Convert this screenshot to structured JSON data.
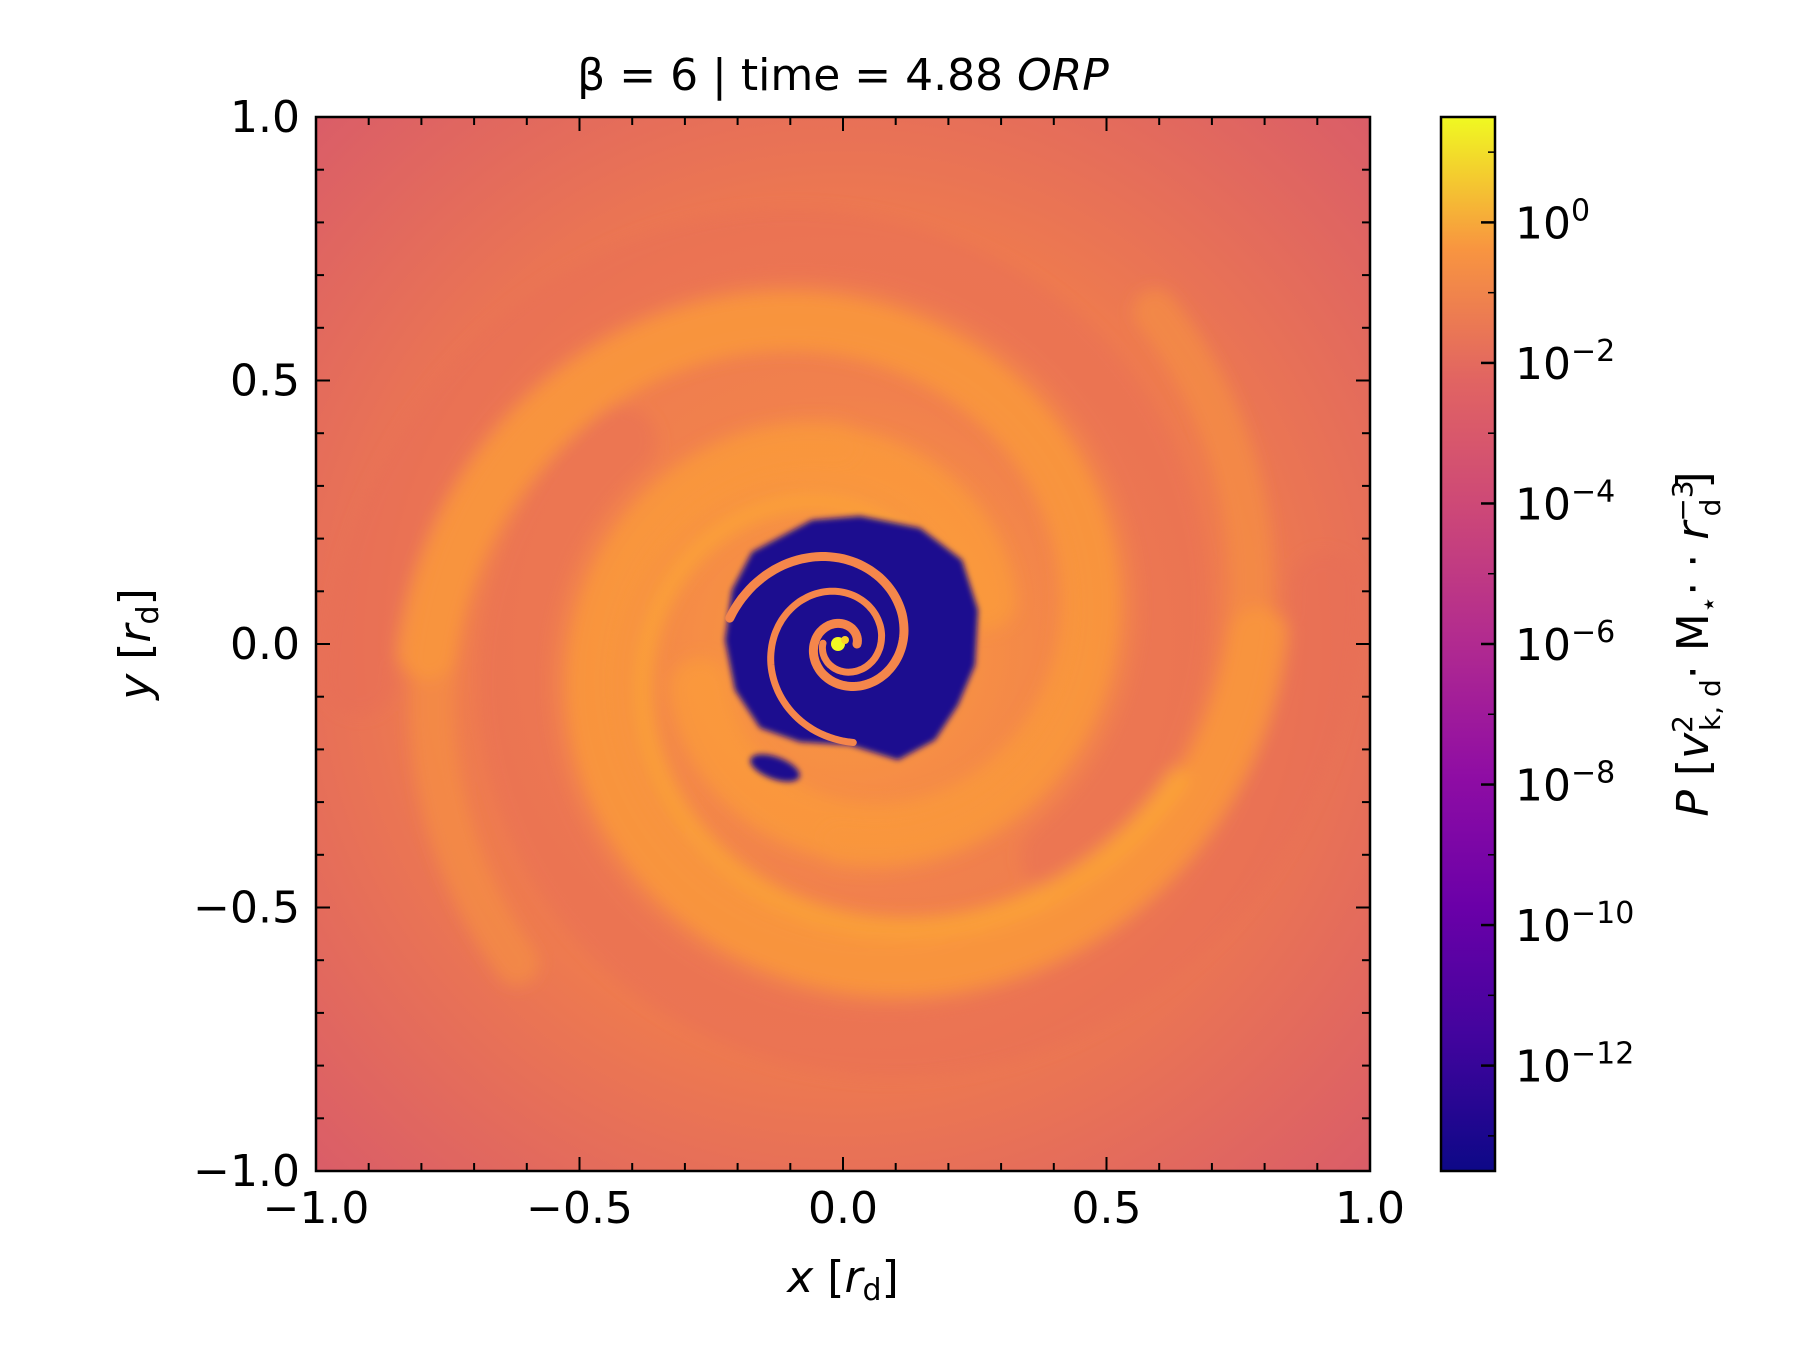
{
  "chart_data": {
    "type": "heatmap",
    "title": "β = 6 | time = 4.88 ORP",
    "title_parts": {
      "prefix": "β = 6 | time = 4.88 ",
      "unit": "ORP"
    },
    "xlabel": "x [r_d]",
    "ylabel": "y [r_d]",
    "xlim": [
      -1.0,
      1.0
    ],
    "ylim": [
      -1.0,
      1.0
    ],
    "x_ticks": [
      -1.0,
      -0.5,
      0.0,
      0.5,
      1.0
    ],
    "y_ticks": [
      -1.0,
      -0.5,
      0.0,
      0.5,
      1.0
    ],
    "x_tick_labels": [
      "−1.0",
      "−0.5",
      "0.0",
      "0.5",
      "1.0"
    ],
    "y_tick_labels": [
      "−1.0",
      "−0.5",
      "0.0",
      "0.5",
      "1.0"
    ],
    "colormap": "plasma",
    "colorbar": {
      "label": "P [v_k,d^2 · M_⋆ · r_d^-3]",
      "scale": "log",
      "range_log10": [
        -13.5,
        1.5
      ],
      "ticks_log10": [
        0,
        -2,
        -4,
        -6,
        -8,
        -10,
        -12
      ],
      "tick_labels": [
        {
          "base": "10",
          "exp": "0"
        },
        {
          "base": "10",
          "exp": "−2"
        },
        {
          "base": "10",
          "exp": "−4"
        },
        {
          "base": "10",
          "exp": "−6"
        },
        {
          "base": "10",
          "exp": "−8"
        },
        {
          "base": "10",
          "exp": "−10"
        },
        {
          "base": "10",
          "exp": "−12"
        }
      ]
    },
    "features": {
      "background_log10P": -4.6,
      "spiral_arms_log10P": -2.0,
      "central_cavity_log10P": -13.0,
      "central_star_log10P": 1.0
    },
    "grid": false
  }
}
